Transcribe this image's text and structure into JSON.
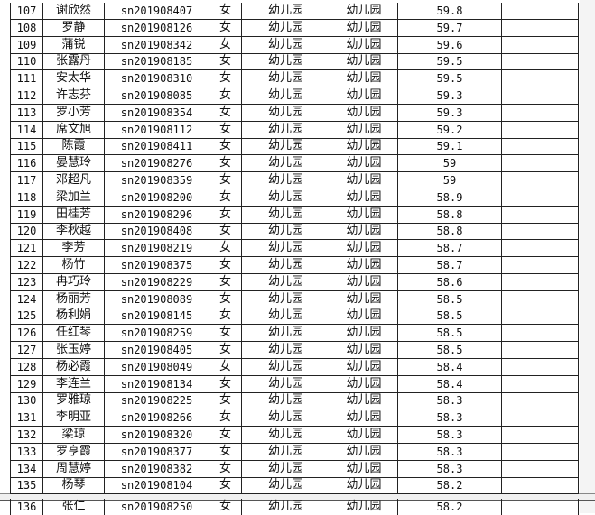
{
  "table": {
    "rows": [
      [
        "107",
        "谢欣然",
        "sn201908407",
        "女",
        "幼儿园",
        "幼儿园",
        "59.8"
      ],
      [
        "108",
        "罗静",
        "sn201908126",
        "女",
        "幼儿园",
        "幼儿园",
        "59.7"
      ],
      [
        "109",
        "蒲锐",
        "sn201908342",
        "女",
        "幼儿园",
        "幼儿园",
        "59.6"
      ],
      [
        "110",
        "张露丹",
        "sn201908185",
        "女",
        "幼儿园",
        "幼儿园",
        "59.5"
      ],
      [
        "111",
        "安太华",
        "sn201908310",
        "女",
        "幼儿园",
        "幼儿园",
        "59.5"
      ],
      [
        "112",
        "许志芬",
        "sn201908085",
        "女",
        "幼儿园",
        "幼儿园",
        "59.3"
      ],
      [
        "113",
        "罗小芳",
        "sn201908354",
        "女",
        "幼儿园",
        "幼儿园",
        "59.3"
      ],
      [
        "114",
        "席文旭",
        "sn201908112",
        "女",
        "幼儿园",
        "幼儿园",
        "59.2"
      ],
      [
        "115",
        "陈霞",
        "sn201908411",
        "女",
        "幼儿园",
        "幼儿园",
        "59.1"
      ],
      [
        "116",
        "晏慧玲",
        "sn201908276",
        "女",
        "幼儿园",
        "幼儿园",
        "59"
      ],
      [
        "117",
        "邓超凡",
        "sn201908359",
        "女",
        "幼儿园",
        "幼儿园",
        "59"
      ],
      [
        "118",
        "梁加兰",
        "sn201908200",
        "女",
        "幼儿园",
        "幼儿园",
        "58.9"
      ],
      [
        "119",
        "田桂芳",
        "sn201908296",
        "女",
        "幼儿园",
        "幼儿园",
        "58.8"
      ],
      [
        "120",
        "李秋越",
        "sn201908408",
        "女",
        "幼儿园",
        "幼儿园",
        "58.8"
      ],
      [
        "121",
        "李芳",
        "sn201908219",
        "女",
        "幼儿园",
        "幼儿园",
        "58.7"
      ],
      [
        "122",
        "杨竹",
        "sn201908375",
        "女",
        "幼儿园",
        "幼儿园",
        "58.7"
      ],
      [
        "123",
        "冉巧玲",
        "sn201908229",
        "女",
        "幼儿园",
        "幼儿园",
        "58.6"
      ],
      [
        "124",
        "杨丽芳",
        "sn201908089",
        "女",
        "幼儿园",
        "幼儿园",
        "58.5"
      ],
      [
        "125",
        "杨利娟",
        "sn201908145",
        "女",
        "幼儿园",
        "幼儿园",
        "58.5"
      ],
      [
        "126",
        "任红琴",
        "sn201908259",
        "女",
        "幼儿园",
        "幼儿园",
        "58.5"
      ],
      [
        "127",
        "张玉婷",
        "sn201908405",
        "女",
        "幼儿园",
        "幼儿园",
        "58.5"
      ],
      [
        "128",
        "杨必霞",
        "sn201908049",
        "女",
        "幼儿园",
        "幼儿园",
        "58.4"
      ],
      [
        "129",
        "李连兰",
        "sn201908134",
        "女",
        "幼儿园",
        "幼儿园",
        "58.4"
      ],
      [
        "130",
        "罗雅琼",
        "sn201908225",
        "女",
        "幼儿园",
        "幼儿园",
        "58.3"
      ],
      [
        "131",
        "李明亚",
        "sn201908266",
        "女",
        "幼儿园",
        "幼儿园",
        "58.3"
      ],
      [
        "132",
        "梁琼",
        "sn201908320",
        "女",
        "幼儿园",
        "幼儿园",
        "58.3"
      ],
      [
        "133",
        "罗亨霞",
        "sn201908377",
        "女",
        "幼儿园",
        "幼儿园",
        "58.3"
      ],
      [
        "134",
        "周慧婷",
        "sn201908382",
        "女",
        "幼儿园",
        "幼儿园",
        "58.3"
      ],
      [
        "135",
        "杨琴",
        "sn201908104",
        "女",
        "幼儿园",
        "幼儿园",
        "58.2"
      ],
      [
        "136",
        "张仁",
        "sn201908250",
        "女",
        "幼儿园",
        "幼儿园",
        "58.2"
      ]
    ]
  }
}
